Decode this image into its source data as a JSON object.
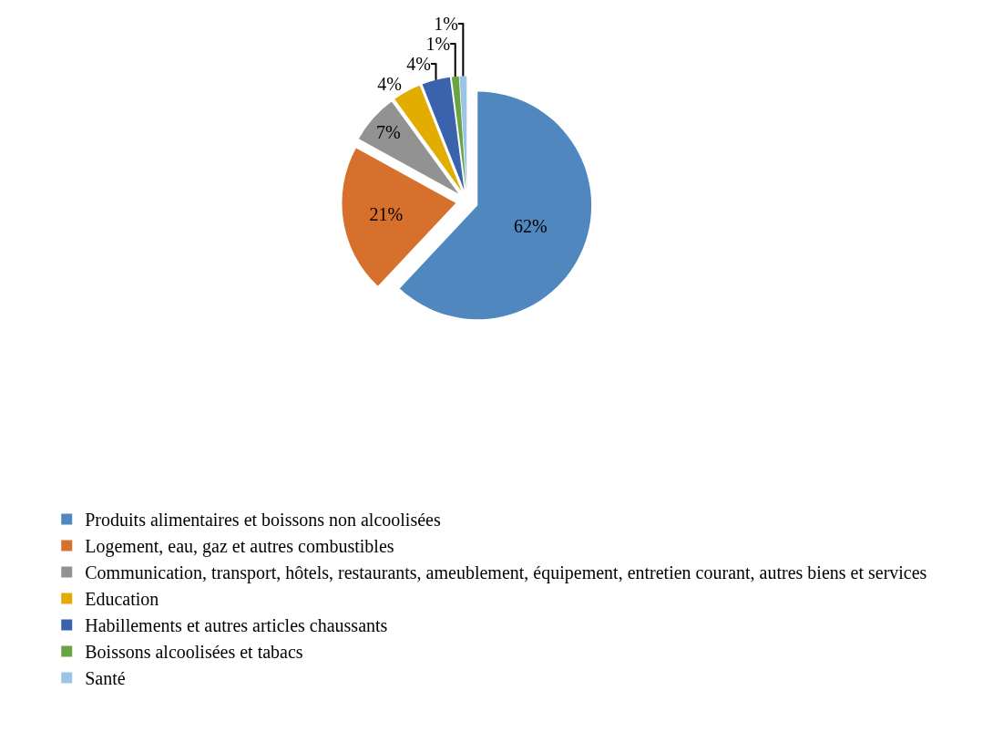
{
  "chart_data": {
    "type": "pie",
    "categories": [
      "Produits alimentaires et boissons non alcoolisées",
      "Logement, eau, gaz et autres combustibles",
      "Communication, transport, hôtels, restaurants, ameublement, équipement, entretien courant, autres biens et services",
      "Education",
      "Habillements et autres articles chaussants",
      "Boissons alcoolisées et tabacs",
      "Santé"
    ],
    "values": [
      62,
      21,
      7,
      4,
      4,
      1,
      1
    ],
    "value_labels": [
      "62%",
      "21%",
      "7%",
      "4%",
      "4%",
      "1%",
      "1%"
    ],
    "colors": [
      "#4f87be",
      "#d6702c",
      "#929292",
      "#e2ac00",
      "#3a63ad",
      "#6aa342",
      "#9dc3e6"
    ],
    "legend": "bottom"
  }
}
